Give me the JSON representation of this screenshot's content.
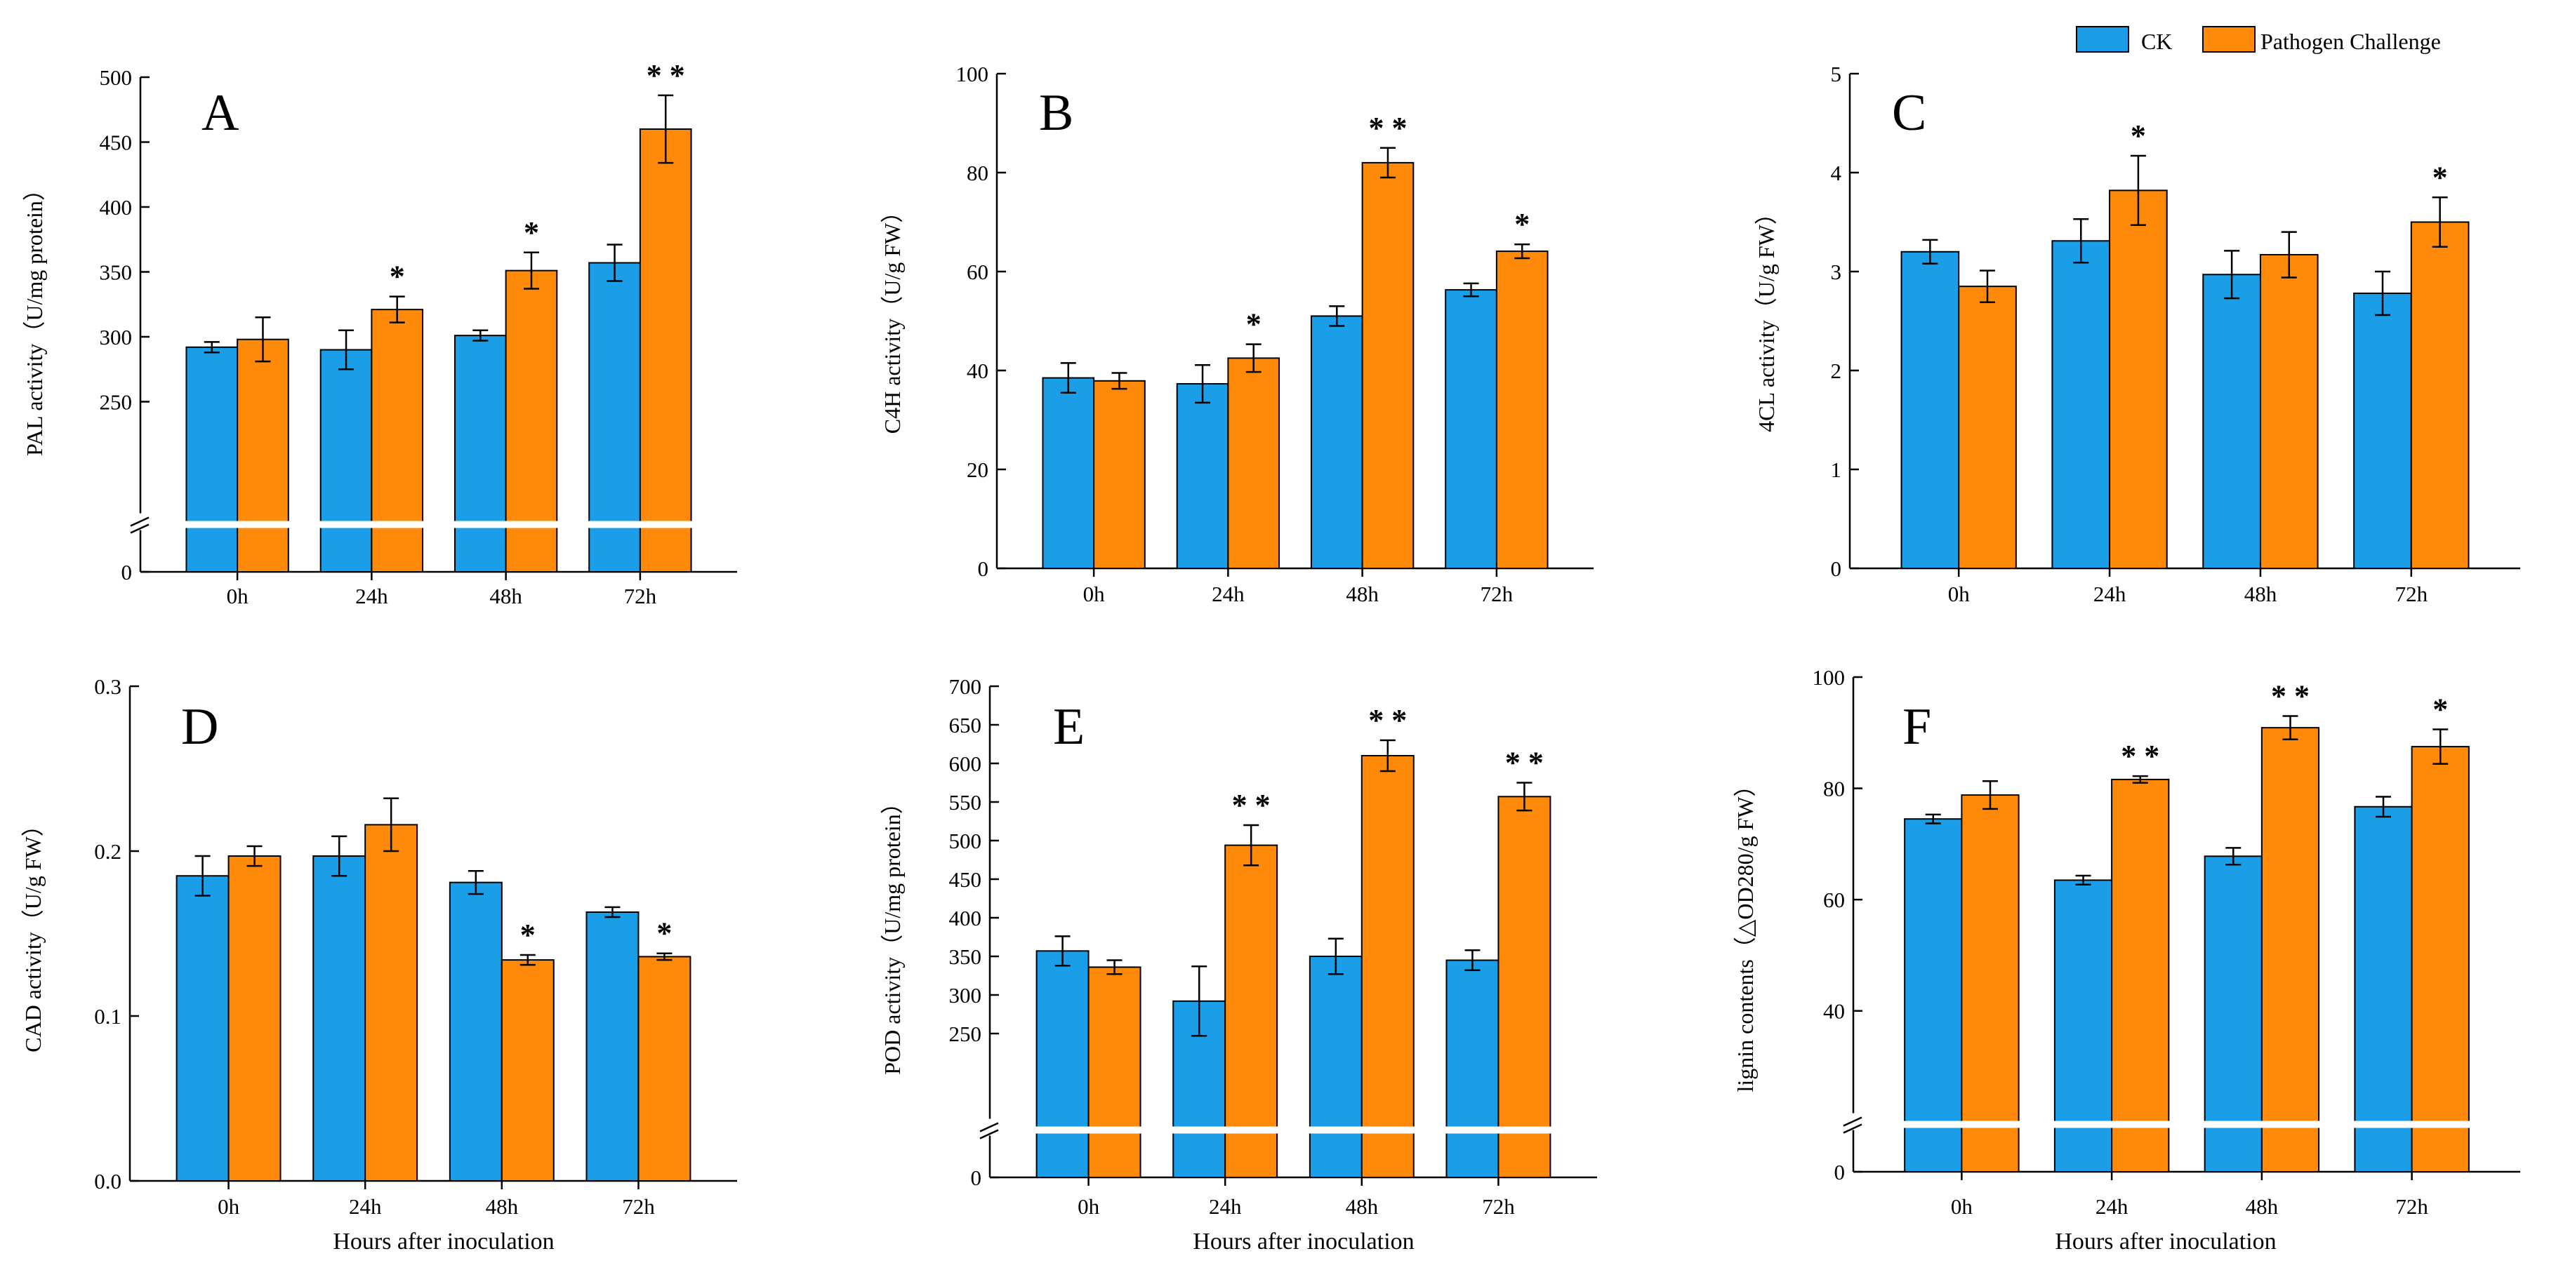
{
  "colors": {
    "ck": "#1a9ee8",
    "pathogen": "#ff8a0a",
    "axis": "#000000",
    "break": "#ffffff"
  },
  "legend": {
    "ck": "CK",
    "pathogen": "Pathogen Challenge"
  },
  "chart_data": [
    {
      "id": "A",
      "type": "bar",
      "panel_label": "A",
      "ylabel": "PAL activity（U/mg protein）",
      "xlabel": "",
      "categories": [
        "0h",
        "24h",
        "48h",
        "72h"
      ],
      "ylim": [
        200,
        500
      ],
      "yticks": [
        "0",
        "250",
        "300",
        "350",
        "400",
        "450",
        "500"
      ],
      "axis_break": true,
      "series": [
        {
          "name": "CK",
          "values": [
            292,
            290,
            301,
            357
          ],
          "errors": [
            4,
            15,
            4,
            14
          ]
        },
        {
          "name": "Pathogen Challenge",
          "values": [
            298,
            321,
            351,
            460
          ],
          "errors": [
            17,
            10,
            14,
            26
          ]
        }
      ],
      "significance": [
        "",
        "*",
        "*",
        "* *"
      ]
    },
    {
      "id": "B",
      "type": "bar",
      "panel_label": "B",
      "ylabel": "C4H activity（U/g FW）",
      "xlabel": "",
      "categories": [
        "0h",
        "24h",
        "48h",
        "72h"
      ],
      "ylim": [
        0,
        100
      ],
      "yticks": [
        "0",
        "20",
        "40",
        "60",
        "80",
        "100"
      ],
      "axis_break": false,
      "series": [
        {
          "name": "CK",
          "values": [
            38.5,
            37.3,
            51,
            56.3
          ],
          "errors": [
            3,
            3.8,
            2,
            1.3
          ]
        },
        {
          "name": "Pathogen Challenge",
          "values": [
            37.9,
            42.5,
            82,
            64.1
          ],
          "errors": [
            1.6,
            2.8,
            3,
            1.4
          ]
        }
      ],
      "significance": [
        "",
        "*",
        "* *",
        "*"
      ]
    },
    {
      "id": "C",
      "type": "bar",
      "panel_label": "C",
      "ylabel": "4CL activity（U/g FW）",
      "xlabel": "",
      "categories": [
        "0h",
        "24h",
        "48h",
        "72h"
      ],
      "ylim": [
        0,
        5
      ],
      "yticks": [
        "0",
        "1",
        "2",
        "3",
        "4",
        "5"
      ],
      "axis_break": false,
      "series": [
        {
          "name": "CK",
          "values": [
            3.2,
            3.31,
            2.97,
            2.78
          ],
          "errors": [
            0.12,
            0.22,
            0.24,
            0.22
          ]
        },
        {
          "name": "Pathogen Challenge",
          "values": [
            2.85,
            3.82,
            3.17,
            3.5
          ],
          "errors": [
            0.16,
            0.35,
            0.23,
            0.25
          ]
        }
      ],
      "significance": [
        "",
        "*",
        "",
        "*"
      ]
    },
    {
      "id": "D",
      "type": "bar",
      "panel_label": "D",
      "ylabel": "CAD activity（U/g FW）",
      "xlabel": "Hours after inoculation",
      "categories": [
        "0h",
        "24h",
        "48h",
        "72h"
      ],
      "ylim": [
        0,
        0.3
      ],
      "yticks": [
        "0.0",
        "0.1",
        "0.2",
        "0.3"
      ],
      "axis_break": false,
      "series": [
        {
          "name": "CK",
          "values": [
            0.185,
            0.197,
            0.181,
            0.163
          ],
          "errors": [
            0.012,
            0.012,
            0.007,
            0.003
          ]
        },
        {
          "name": "Pathogen Challenge",
          "values": [
            0.197,
            0.216,
            0.134,
            0.136
          ],
          "errors": [
            0.006,
            0.016,
            0.003,
            0.002
          ]
        }
      ],
      "significance": [
        "",
        "",
        "*",
        "*"
      ]
    },
    {
      "id": "E",
      "type": "bar",
      "panel_label": "E",
      "ylabel": "POD activity（U/mg protein）",
      "xlabel": "Hours after inoculation",
      "categories": [
        "0h",
        "24h",
        "48h",
        "72h"
      ],
      "ylim": [
        200,
        700
      ],
      "yticks": [
        "0",
        "250",
        "300",
        "350",
        "400",
        "450",
        "500",
        "550",
        "600",
        "650",
        "700"
      ],
      "axis_break": true,
      "series": [
        {
          "name": "CK",
          "values": [
            357,
            292,
            350,
            345
          ],
          "errors": [
            19,
            45,
            23,
            13
          ]
        },
        {
          "name": "Pathogen Challenge",
          "values": [
            336,
            494,
            610,
            557
          ],
          "errors": [
            9,
            26,
            20,
            18
          ]
        }
      ],
      "significance": [
        "",
        "* *",
        "* *",
        "* *"
      ]
    },
    {
      "id": "F",
      "type": "bar",
      "panel_label": "F",
      "ylabel": "lignin contents（△OD280/g FW）",
      "xlabel": "Hours after inoculation",
      "categories": [
        "0h",
        "24h",
        "48h",
        "72h"
      ],
      "ylim": [
        30,
        100
      ],
      "yticks": [
        "0",
        "40",
        "60",
        "80",
        "100"
      ],
      "axis_break": true,
      "series": [
        {
          "name": "CK",
          "values": [
            74.5,
            63.5,
            67.8,
            76.7
          ],
          "errors": [
            0.8,
            0.8,
            1.5,
            1.8
          ]
        },
        {
          "name": "Pathogen Challenge",
          "values": [
            78.8,
            81.6,
            90.9,
            87.5
          ],
          "errors": [
            2.5,
            0.6,
            2.1,
            3.1
          ]
        }
      ],
      "significance": [
        "",
        "* *",
        "* *",
        "*"
      ]
    }
  ]
}
